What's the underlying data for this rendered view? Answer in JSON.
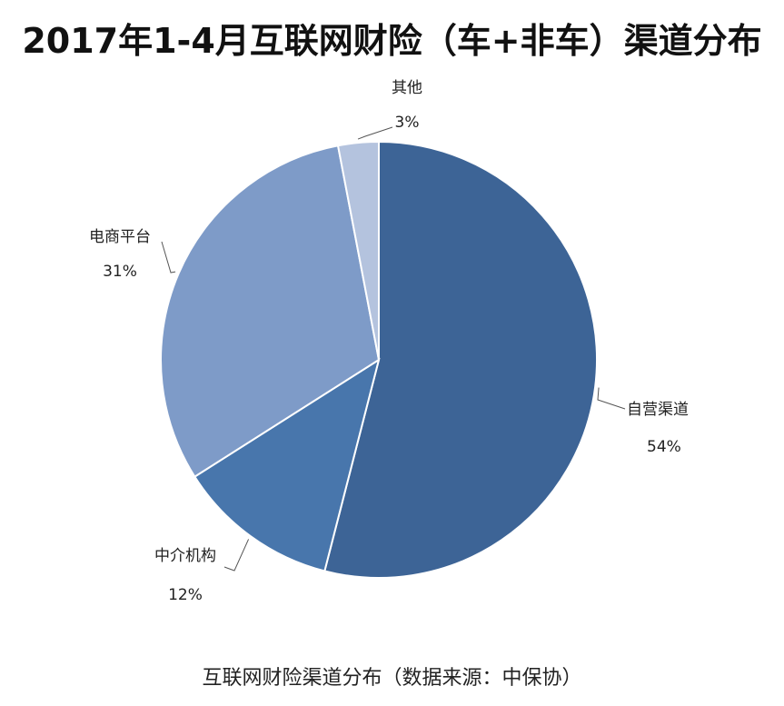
{
  "title": "2017年1-4月互联网财险（车+非车）渠道分布",
  "caption": "互联网财险渠道分布（数据来源：中保协）",
  "chart_data": {
    "type": "pie",
    "slices": [
      {
        "name": "自营渠道",
        "value": 54,
        "label": "54%",
        "color": "#3D6496"
      },
      {
        "name": "中介机构",
        "value": 12,
        "label": "12%",
        "color": "#4876AC"
      },
      {
        "name": "电商平台",
        "value": 31,
        "label": "31%",
        "color": "#7E9BC8"
      },
      {
        "name": "其他",
        "value": 3,
        "label": "3%",
        "color": "#B4C3DE"
      }
    ]
  }
}
